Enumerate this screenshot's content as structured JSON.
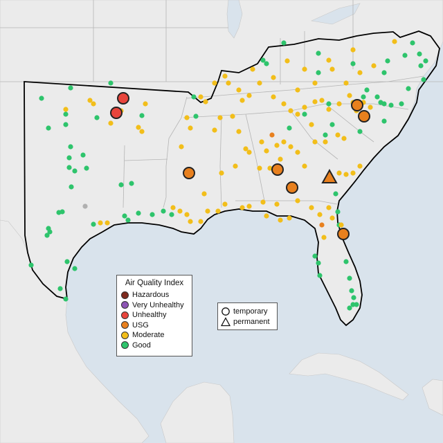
{
  "legend": {
    "title": "Air Quality Index",
    "categories": [
      {
        "label": "Hazardous",
        "color": "#7e2a1e"
      },
      {
        "label": "Very Unhealthy",
        "color": "#8d55b4"
      },
      {
        "label": "Unhealthy",
        "color": "#e8453c"
      },
      {
        "label": "USG",
        "color": "#e8801e"
      },
      {
        "label": "Moderate",
        "color": "#f2be1a"
      },
      {
        "label": "Good",
        "color": "#2ec46c"
      }
    ]
  },
  "site_types": [
    {
      "label": "temporary",
      "icon": "circle-icon"
    },
    {
      "label": "permanent",
      "icon": "triangle-icon"
    }
  ],
  "colors": {
    "water": "#d9e3ec",
    "land": "#ebebeb",
    "state_border": "#b4b4b4",
    "region_outline": "#000000",
    "missing": "#b0b0b0"
  }
}
